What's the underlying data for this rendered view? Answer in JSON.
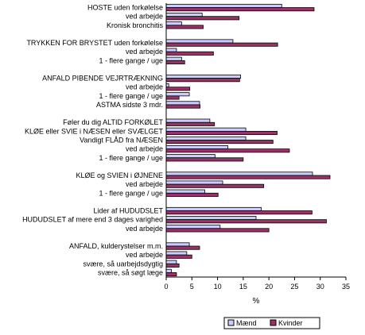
{
  "chart_data": {
    "type": "bar",
    "orientation": "horizontal",
    "categories": [
      "HOSTE uden forkølelse",
      "ved arbejde",
      "Kronisk bronchitis",
      "",
      "TRYKKEN FOR BRYSTET uden forkølelse",
      "ved arbejde",
      "1 - flere gange / uge",
      "",
      "ANFALD PIBENDE VEJRTRÆKNING",
      "ved arbejde",
      "1 - flere gange / uge",
      "ASTMA sidste 3 mdr.",
      "",
      "Føler du dig ALTID FORKØLET",
      "KLØE eller SVIE i NÆSEN eller SVÆLGET",
      "Vandigt FLÅD fra NÆSEN",
      "ved arbejde",
      "1 - flere gange / uge",
      "",
      "KLØE og SVIEN i ØJNENE",
      "ved arbejde",
      "1 - flere gange / uge",
      "",
      "Lider af HUDUDSLET",
      "HUDUDSLET af mere end 3 dages varighed",
      "ved arbejde",
      "",
      "ANFALD, kulderystelser m.m.",
      "ved arbejde",
      "svære, så uarbejdsdygtig",
      "svære, så søgt læge"
    ],
    "series": [
      {
        "name": "Mænd",
        "color": "#ccccff",
        "values": [
          22.5,
          7,
          3,
          null,
          13,
          2,
          3,
          null,
          14.5,
          0.5,
          4.5,
          6.5,
          null,
          8.5,
          15.5,
          15.5,
          12,
          9.5,
          null,
          28.5,
          11,
          7.5,
          null,
          18.5,
          17.5,
          10.5,
          null,
          4.5,
          4,
          2,
          1
        ]
      },
      {
        "name": "Kvinder",
        "color": "#993366",
        "values": [
          28.8,
          14.2,
          7.2,
          null,
          21.7,
          9.2,
          3.6,
          null,
          14.3,
          4.6,
          2.5,
          6.6,
          null,
          9.4,
          21.6,
          20.8,
          24,
          15,
          null,
          31.9,
          19,
          10.1,
          null,
          28.4,
          31.2,
          20,
          null,
          6.5,
          5,
          2.5,
          2
        ]
      }
    ],
    "xlabel": "%",
    "ylabel": "",
    "title": "",
    "xlim": [
      0,
      35
    ],
    "xticks": [
      0,
      5,
      10,
      15,
      20,
      25,
      30,
      35
    ],
    "grid": false,
    "legend_position": "bottom-right",
    "bar_edge_color": "#000000"
  }
}
